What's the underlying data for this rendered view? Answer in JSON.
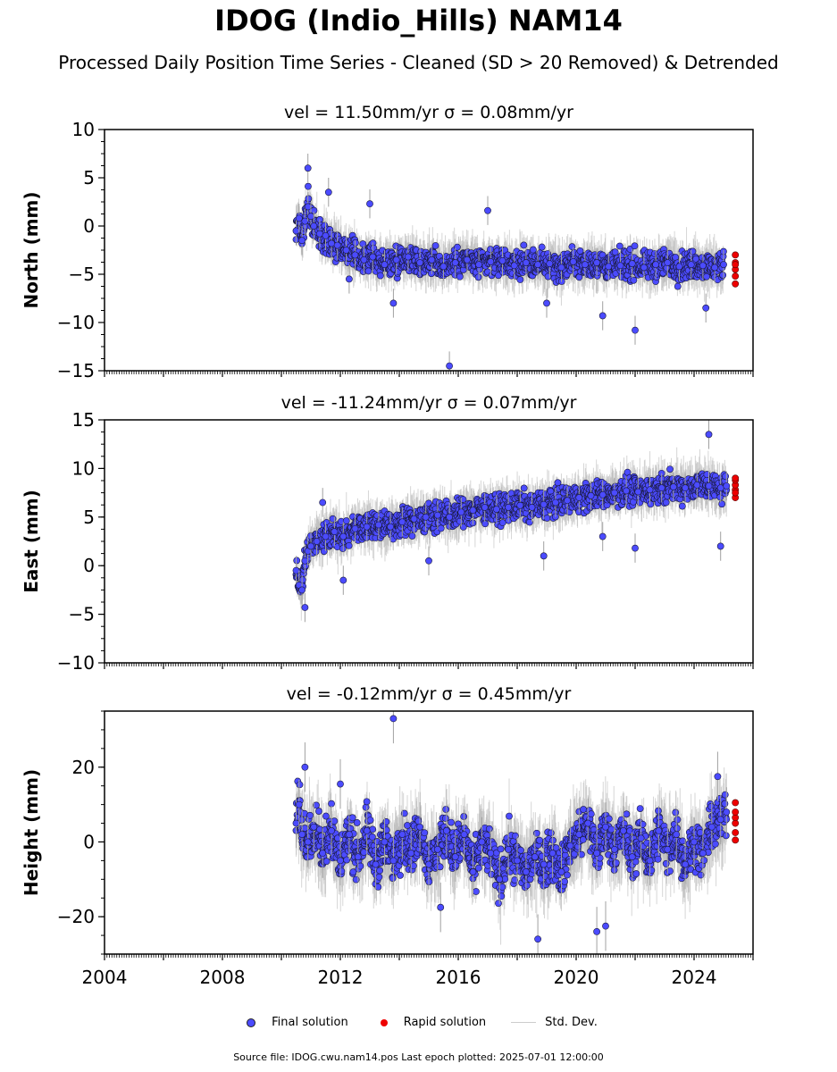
{
  "title": "IDOG (Indio_Hills) NAM14",
  "subtitle": "Processed Daily Position Time Series - Cleaned (SD > 20 Removed) & Detrended",
  "legend": {
    "final": "Final solution",
    "rapid": "Rapid solution",
    "std": "Std. Dev."
  },
  "footer": "Source file: IDOG.cwu.nam14.pos  Last epoch plotted: 2025-07-01 12:00:00",
  "colors": {
    "final": "#4b4bff",
    "rapid": "#ee0000",
    "errorbar": "#b4b4b4"
  },
  "chart_data": [
    {
      "type": "scatter",
      "id": "north",
      "title": "vel = 11.50mm/yr   σ = 0.08mm/yr",
      "ylabel": "North (mm)",
      "xlim": [
        2004,
        2026
      ],
      "ylim": [
        -15,
        10
      ],
      "yticks": [
        -15,
        -10,
        -5,
        0,
        5,
        10
      ],
      "xticks": [],
      "grid": false,
      "final_series": {
        "name": "Final solution",
        "x": [
          2010.5,
          2010.6,
          2010.7,
          2010.8,
          2010.9,
          2011.0,
          2011.1,
          2011.3,
          2011.5,
          2011.7,
          2011.9,
          2012.2,
          2012.5,
          2012.8,
          2013.1,
          2013.5,
          2013.9,
          2014.3,
          2014.7,
          2015.1,
          2015.5,
          2015.9,
          2016.3,
          2016.7,
          2017.1,
          2017.5,
          2017.9,
          2018.3,
          2018.7,
          2019.1,
          2019.5,
          2019.9,
          2020.3,
          2020.7,
          2021.1,
          2021.5,
          2021.9,
          2022.3,
          2022.7,
          2023.1,
          2023.5,
          2023.9,
          2024.3,
          2024.7,
          2025.0,
          2010.9,
          2011.6,
          2012.3,
          2013.0,
          2013.8,
          2015.7,
          2017.0,
          2019.0,
          2020.9,
          2022.0,
          2024.4
        ],
        "y": [
          -0.5,
          0.8,
          -1.5,
          0.5,
          2.0,
          1.0,
          0.0,
          -0.8,
          -1.0,
          -1.8,
          -2.0,
          -2.5,
          -3.0,
          -3.5,
          -3.2,
          -4.0,
          -3.5,
          -3.2,
          -3.8,
          -3.5,
          -4.2,
          -3.8,
          -3.5,
          -4.0,
          -3.7,
          -3.6,
          -4.1,
          -3.8,
          -4.0,
          -3.9,
          -4.3,
          -3.7,
          -4.0,
          -3.8,
          -4.2,
          -4.1,
          -3.9,
          -4.3,
          -4.0,
          -3.8,
          -4.2,
          -4.0,
          -4.1,
          -4.3,
          -4.0,
          6.0,
          3.5,
          -5.5,
          2.3,
          -8.0,
          -14.5,
          1.6,
          -8.0,
          -9.3,
          -10.8,
          -8.5
        ]
      },
      "rapid_series": {
        "name": "Rapid solution",
        "x": [
          2025.4,
          2025.4,
          2025.4,
          2025.4,
          2025.4,
          2025.4
        ],
        "y": [
          -3.0,
          -3.8,
          -4.5,
          -5.2,
          -6.0,
          -4.0
        ]
      }
    },
    {
      "type": "scatter",
      "id": "east",
      "title": "vel = -11.24mm/yr   σ = 0.07mm/yr",
      "ylabel": "East (mm)",
      "xlim": [
        2004,
        2026
      ],
      "ylim": [
        -10,
        15
      ],
      "yticks": [
        -10,
        -5,
        0,
        5,
        10,
        15
      ],
      "xticks": [],
      "grid": false,
      "final_series": {
        "name": "Final solution",
        "x": [
          2010.5,
          2010.6,
          2010.7,
          2010.8,
          2010.9,
          2011.0,
          2011.2,
          2011.5,
          2011.8,
          2012.1,
          2012.5,
          2012.9,
          2013.3,
          2013.7,
          2014.1,
          2014.5,
          2014.9,
          2015.3,
          2015.7,
          2016.1,
          2016.5,
          2016.9,
          2017.3,
          2017.7,
          2018.1,
          2018.5,
          2018.9,
          2019.3,
          2019.7,
          2020.1,
          2020.5,
          2020.9,
          2021.3,
          2021.7,
          2022.1,
          2022.5,
          2022.9,
          2023.3,
          2023.7,
          2024.1,
          2024.5,
          2024.9,
          2025.1,
          2010.8,
          2011.4,
          2012.1,
          2015.0,
          2018.9,
          2020.9,
          2022.0,
          2024.5,
          2024.9
        ],
        "y": [
          -0.5,
          -2.0,
          -2.5,
          0.5,
          1.5,
          2.0,
          2.5,
          3.0,
          3.5,
          3.0,
          3.8,
          4.0,
          4.2,
          4.0,
          4.5,
          4.8,
          5.0,
          5.2,
          5.0,
          5.5,
          5.7,
          6.0,
          5.8,
          6.0,
          6.2,
          6.0,
          6.3,
          6.5,
          6.7,
          7.0,
          7.2,
          7.3,
          7.5,
          7.7,
          7.6,
          7.8,
          8.0,
          8.1,
          8.0,
          8.3,
          8.2,
          8.0,
          8.2,
          -4.3,
          6.5,
          -1.5,
          0.5,
          1.0,
          3.0,
          1.8,
          13.5,
          2.0
        ]
      },
      "rapid_series": {
        "name": "Rapid solution",
        "x": [
          2025.4,
          2025.4,
          2025.4,
          2025.4,
          2025.4,
          2025.4
        ],
        "y": [
          7.0,
          7.8,
          8.3,
          8.8,
          9.0,
          7.5
        ]
      }
    },
    {
      "type": "scatter",
      "id": "height",
      "title": "vel = -0.12mm/yr   σ = 0.45mm/yr",
      "ylabel": "Height (mm)",
      "xlim": [
        2004,
        2026
      ],
      "ylim": [
        -30,
        35
      ],
      "yticks": [
        -20,
        0,
        20
      ],
      "xticks": [
        2004,
        2008,
        2012,
        2016,
        2020,
        2024
      ],
      "grid": false,
      "final_series": {
        "name": "Final solution",
        "x": [
          2010.5,
          2010.6,
          2010.7,
          2010.9,
          2011.1,
          2011.4,
          2011.7,
          2012.0,
          2012.3,
          2012.6,
          2012.9,
          2013.2,
          2013.5,
          2013.8,
          2014.1,
          2014.4,
          2014.7,
          2015.0,
          2015.3,
          2015.6,
          2015.9,
          2016.2,
          2016.5,
          2016.8,
          2017.1,
          2017.4,
          2017.7,
          2018.0,
          2018.3,
          2018.6,
          2018.9,
          2019.2,
          2019.5,
          2019.8,
          2020.1,
          2020.4,
          2020.7,
          2021.0,
          2021.3,
          2021.6,
          2021.9,
          2022.2,
          2022.5,
          2022.8,
          2023.1,
          2023.4,
          2023.7,
          2024.0,
          2024.3,
          2024.6,
          2024.9,
          2025.1,
          2010.8,
          2013.8,
          2012.0,
          2018.7,
          2020.7,
          2021.0,
          2015.4,
          2024.8
        ],
        "y": [
          5.0,
          10.0,
          2.0,
          0.0,
          4.0,
          -3.0,
          3.0,
          -5.0,
          2.0,
          -4.0,
          3.0,
          -6.0,
          0.0,
          -5.0,
          2.0,
          -3.0,
          4.0,
          -6.0,
          -2.0,
          3.0,
          -4.0,
          2.0,
          -8.0,
          0.0,
          -3.0,
          -10.0,
          -2.0,
          -5.0,
          -8.0,
          -4.0,
          -6.0,
          -3.0,
          -8.0,
          -1.0,
          2.0,
          5.0,
          -3.0,
          4.0,
          -2.0,
          3.0,
          -4.0,
          1.0,
          -5.0,
          3.0,
          -2.0,
          2.0,
          -6.0,
          0.0,
          -3.0,
          4.0,
          6.0,
          8.0,
          20.0,
          33.0,
          15.5,
          -26.0,
          -24.0,
          -22.5,
          -17.5,
          17.5
        ]
      },
      "rapid_series": {
        "name": "Rapid solution",
        "x": [
          2025.4,
          2025.4,
          2025.4,
          2025.4,
          2025.4,
          2025.4
        ],
        "y": [
          0.5,
          2.5,
          5.0,
          6.5,
          8.0,
          10.5
        ]
      }
    }
  ]
}
